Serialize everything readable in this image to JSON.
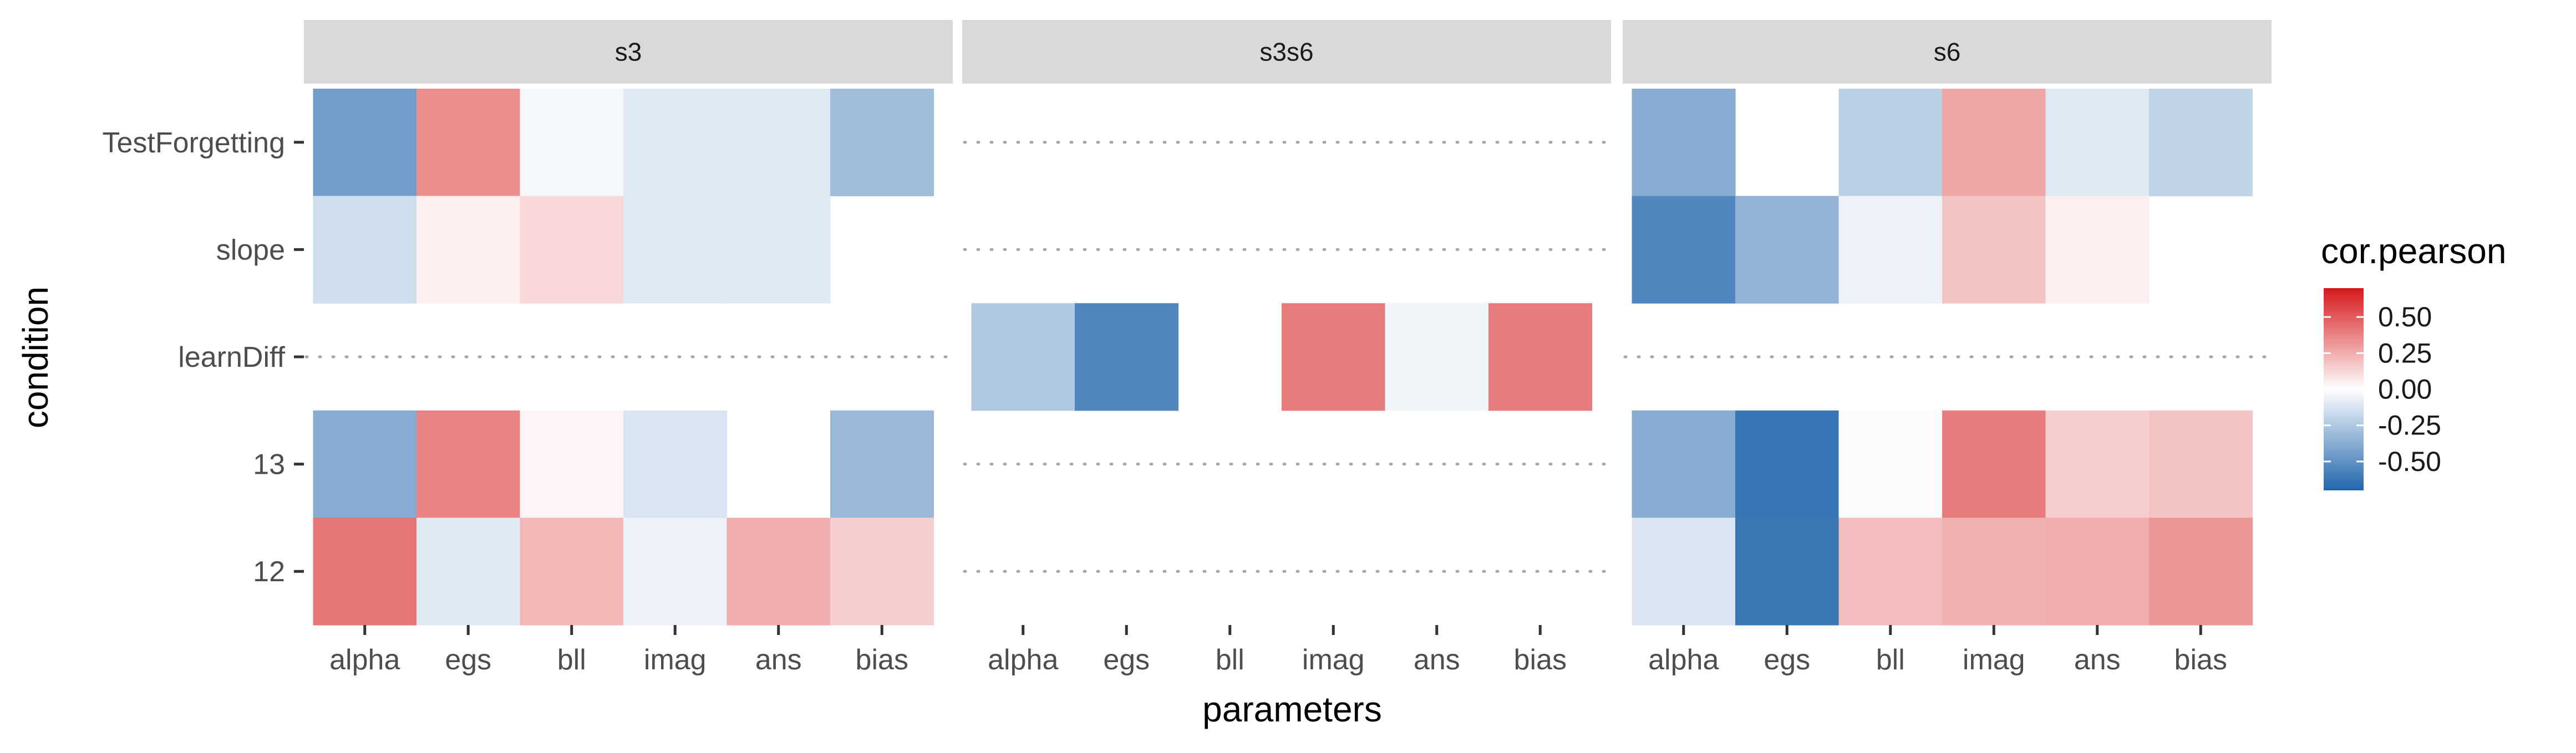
{
  "chart_data": {
    "type": "heatmap",
    "facet_var": "",
    "facets": [
      "s3",
      "s3s6",
      "s6"
    ],
    "x_categories": [
      "alpha",
      "egs",
      "bll",
      "imag",
      "ans",
      "bias"
    ],
    "y_categories": [
      "TestForgetting",
      "slope",
      "learnDiff",
      "13",
      "12"
    ],
    "xlabel": "parameters",
    "ylabel": "condition",
    "fill_name": "cor.pearson",
    "fill_scale": {
      "low": "#2166ac",
      "mid": "#ffffff",
      "high": "#d6191b",
      "limits": [
        -0.7,
        0.7
      ]
    },
    "legend": {
      "title": "cor.pearson",
      "breaks": [
        0.5,
        0.25,
        0.0,
        -0.25,
        -0.5
      ],
      "labels": [
        "0.50",
        "0.25",
        "0.00",
        "-0.25",
        "-0.50"
      ],
      "position": "right"
    },
    "missing_row_style": "dotted-line",
    "panels": [
      {
        "facet": "s3",
        "values": [
          [
            -0.45,
            0.35,
            -0.03,
            -0.1,
            -0.1,
            -0.3
          ],
          [
            -0.15,
            0.05,
            0.12,
            -0.1,
            -0.1,
            null
          ],
          [
            null,
            null,
            null,
            null,
            null,
            null
          ],
          [
            -0.38,
            0.38,
            0.03,
            -0.12,
            null,
            -0.32
          ],
          [
            0.42,
            -0.1,
            0.22,
            -0.06,
            0.25,
            0.15
          ]
        ]
      },
      {
        "facet": "s3s6",
        "values": [
          [
            null,
            null,
            null,
            null,
            null,
            null
          ],
          [
            null,
            null,
            null,
            null,
            null,
            null
          ],
          [
            -0.25,
            -0.55,
            null,
            0.4,
            -0.05,
            0.4
          ],
          [
            null,
            null,
            null,
            null,
            null,
            null
          ],
          [
            null,
            null,
            null,
            null,
            null,
            null
          ]
        ]
      },
      {
        "facet": "s6",
        "values": [
          [
            -0.38,
            null,
            -0.22,
            0.27,
            -0.1,
            -0.2
          ],
          [
            -0.55,
            -0.35,
            -0.06,
            0.18,
            0.05,
            null
          ],
          [
            null,
            null,
            null,
            null,
            null,
            null
          ],
          [
            -0.38,
            -0.63,
            -0.02,
            0.4,
            0.15,
            0.18
          ],
          [
            -0.12,
            -0.62,
            0.2,
            0.24,
            0.25,
            0.32
          ]
        ]
      }
    ]
  }
}
